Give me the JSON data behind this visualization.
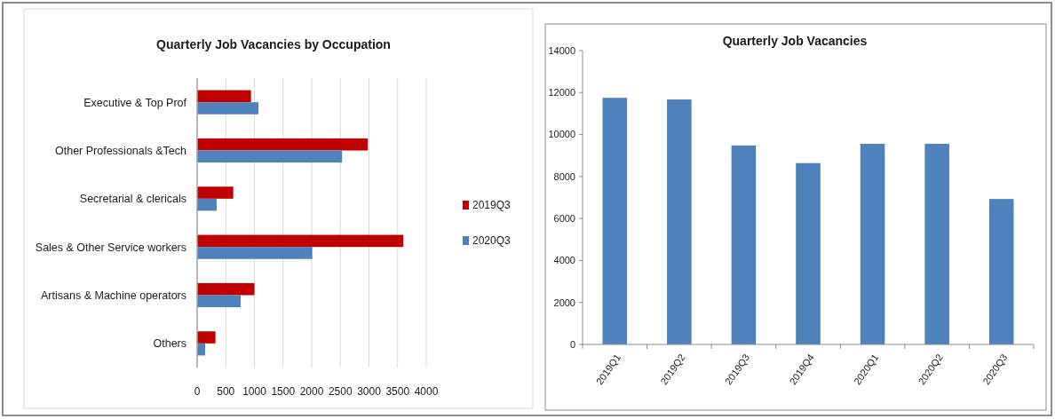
{
  "chart_data": [
    {
      "type": "bar",
      "orientation": "horizontal",
      "title": "Quarterly Job Vacancies by Occupation",
      "categories": [
        "Executive & Top Prof",
        "Other Professionals &Tech",
        "Secretarial & clericals",
        "Sales & Other Service workers",
        "Artisans & Machine operators",
        "Others"
      ],
      "series": [
        {
          "name": "2019Q3",
          "color": "#c00000",
          "values": [
            940,
            2980,
            630,
            3600,
            1000,
            320
          ]
        },
        {
          "name": "2020Q3",
          "color": "#4f81bd",
          "values": [
            1070,
            2530,
            340,
            2010,
            760,
            140
          ]
        }
      ],
      "xlim": [
        0,
        4000
      ],
      "xticks": [
        0,
        500,
        1000,
        1500,
        2000,
        2500,
        3000,
        3500,
        4000
      ],
      "grid": "x",
      "legend": "right"
    },
    {
      "type": "bar",
      "title": "Quarterly Job Vacancies",
      "categories": [
        "2019Q1",
        "2019Q2",
        "2019Q3",
        "2019Q4",
        "2020Q1",
        "2020Q2",
        "2020Q3"
      ],
      "values": [
        11750,
        11670,
        9480,
        8640,
        9560,
        9560,
        6930
      ],
      "color": "#4f81bd",
      "ylim": [
        0,
        14000
      ],
      "yticks": [
        0,
        2000,
        4000,
        6000,
        8000,
        10000,
        12000,
        14000
      ]
    }
  ]
}
